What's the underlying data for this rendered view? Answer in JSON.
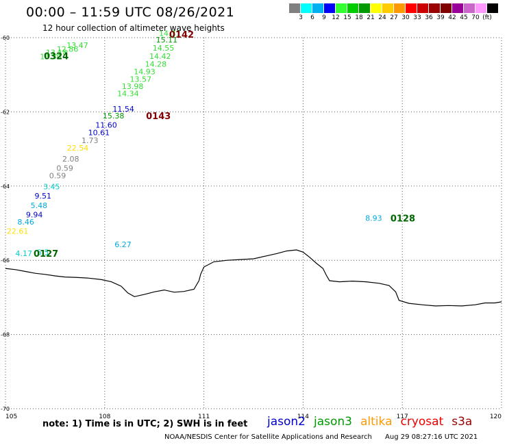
{
  "header": {
    "title": "00:00 – 11:59 UTC 08/26/2021",
    "subtitle": "12 hour collection of altimeter wave heights"
  },
  "colorbar": {
    "colors": [
      "#808080",
      "#00ffff",
      "#00b0f0",
      "#0000ff",
      "#33ff33",
      "#00cc00",
      "#009900",
      "#ffff00",
      "#ffcc00",
      "#ff9900",
      "#ff0000",
      "#cc0000",
      "#990000",
      "#800000",
      "#990099",
      "#cc66cc",
      "#ff99ff",
      "#000000"
    ],
    "labels": [
      "3",
      "6",
      "9",
      "12",
      "15",
      "18",
      "21",
      "24",
      "27",
      "30",
      "33",
      "36",
      "39",
      "42",
      "45",
      "70",
      "(ft)"
    ]
  },
  "map": {
    "x_ticks": [
      {
        "value": 105,
        "label": "105"
      },
      {
        "value": 108,
        "label": "108"
      },
      {
        "value": 111,
        "label": "111"
      },
      {
        "value": 114,
        "label": "114"
      },
      {
        "value": 117,
        "label": "117"
      },
      {
        "value": 120,
        "label": "120"
      }
    ],
    "y_ticks": [
      {
        "value": -60,
        "label": "-60"
      },
      {
        "value": -62,
        "label": "-62"
      },
      {
        "value": -64,
        "label": "-64"
      },
      {
        "value": -66,
        "label": "-66"
      },
      {
        "value": -68,
        "label": "-68"
      },
      {
        "value": -70,
        "label": "-70"
      }
    ],
    "x_range": [
      105,
      120
    ],
    "y_range": [
      -60,
      -70
    ],
    "coastline": [
      [
        105.0,
        -66.22
      ],
      [
        105.3,
        -66.25
      ],
      [
        105.6,
        -66.3
      ],
      [
        105.9,
        -66.35
      ],
      [
        106.2,
        -66.38
      ],
      [
        106.5,
        -66.42
      ],
      [
        106.8,
        -66.45
      ],
      [
        107.1,
        -66.46
      ],
      [
        107.5,
        -66.48
      ],
      [
        107.9,
        -66.52
      ],
      [
        108.2,
        -66.58
      ],
      [
        108.5,
        -66.7
      ],
      [
        108.7,
        -66.88
      ],
      [
        108.9,
        -66.98
      ],
      [
        109.2,
        -66.92
      ],
      [
        109.5,
        -66.85
      ],
      [
        109.8,
        -66.8
      ],
      [
        110.1,
        -66.86
      ],
      [
        110.4,
        -66.84
      ],
      [
        110.7,
        -66.78
      ],
      [
        110.85,
        -66.55
      ],
      [
        110.9,
        -66.38
      ],
      [
        111.0,
        -66.18
      ],
      [
        111.3,
        -66.04
      ],
      [
        111.7,
        -66.0
      ],
      [
        112.1,
        -65.98
      ],
      [
        112.5,
        -65.96
      ],
      [
        112.9,
        -65.88
      ],
      [
        113.2,
        -65.82
      ],
      [
        113.5,
        -65.75
      ],
      [
        113.8,
        -65.72
      ],
      [
        114.0,
        -65.78
      ],
      [
        114.2,
        -65.92
      ],
      [
        114.4,
        -66.08
      ],
      [
        114.6,
        -66.22
      ],
      [
        114.7,
        -66.4
      ],
      [
        114.8,
        -66.55
      ],
      [
        115.1,
        -66.58
      ],
      [
        115.5,
        -66.56
      ],
      [
        115.9,
        -66.58
      ],
      [
        116.3,
        -66.62
      ],
      [
        116.6,
        -66.68
      ],
      [
        116.8,
        -66.85
      ],
      [
        116.9,
        -67.08
      ],
      [
        117.2,
        -67.16
      ],
      [
        117.6,
        -67.2
      ],
      [
        118.0,
        -67.23
      ],
      [
        118.4,
        -67.22
      ],
      [
        118.8,
        -67.23
      ],
      [
        119.2,
        -67.2
      ],
      [
        119.5,
        -67.15
      ],
      [
        119.8,
        -67.15
      ],
      [
        120.0,
        -67.12
      ]
    ],
    "observations": [
      {
        "lon": 106.04,
        "lat": -60.58,
        "value": "13.30",
        "color": "#33dd33"
      },
      {
        "lon": 106.22,
        "lat": -60.47,
        "value": "13.18",
        "color": "#33dd33"
      },
      {
        "lon": 106.55,
        "lat": -60.38,
        "value": "12.86",
        "color": "#33dd33"
      },
      {
        "lon": 106.85,
        "lat": -60.28,
        "value": "13.47",
        "color": "#33dd33"
      },
      {
        "lon": 109.64,
        "lat": -59.95,
        "value": "14.31",
        "color": "#33dd33"
      },
      {
        "lon": 109.55,
        "lat": -60.13,
        "value": "15.11",
        "color": "#009900"
      },
      {
        "lon": 109.45,
        "lat": -60.35,
        "value": "14.55",
        "color": "#33dd33"
      },
      {
        "lon": 109.35,
        "lat": -60.57,
        "value": "14.42",
        "color": "#33dd33"
      },
      {
        "lon": 109.22,
        "lat": -60.78,
        "value": "14.28",
        "color": "#33dd33"
      },
      {
        "lon": 108.88,
        "lat": -60.99,
        "value": "14.93",
        "color": "#33dd33"
      },
      {
        "lon": 108.76,
        "lat": -61.19,
        "value": "13.57",
        "color": "#33dd33"
      },
      {
        "lon": 108.52,
        "lat": -61.38,
        "value": "13.98",
        "color": "#33dd33"
      },
      {
        "lon": 108.38,
        "lat": -61.58,
        "value": "14.34",
        "color": "#33dd33"
      },
      {
        "lon": 108.24,
        "lat": -61.99,
        "value": "11.54",
        "color": "#0000cc"
      },
      {
        "lon": 107.94,
        "lat": -62.18,
        "value": "15.38",
        "color": "#009900"
      },
      {
        "lon": 107.72,
        "lat": -62.43,
        "value": "11.60",
        "color": "#0000cc"
      },
      {
        "lon": 107.5,
        "lat": -62.63,
        "value": "10.61",
        "color": "#0000cc"
      },
      {
        "lon": 107.3,
        "lat": -62.84,
        "value": "1.73",
        "color": "#808080"
      },
      {
        "lon": 106.86,
        "lat": -63.04,
        "value": "22.54",
        "color": "#ffdd00"
      },
      {
        "lon": 106.72,
        "lat": -63.34,
        "value": "2.08",
        "color": "#808080"
      },
      {
        "lon": 106.54,
        "lat": -63.59,
        "value": "0.59",
        "color": "#808080"
      },
      {
        "lon": 106.32,
        "lat": -63.79,
        "value": "0.59",
        "color": "#808080"
      },
      {
        "lon": 106.14,
        "lat": -64.09,
        "value": "3.45",
        "color": "#00cccc"
      },
      {
        "lon": 105.88,
        "lat": -64.34,
        "value": "9.51",
        "color": "#0000cc"
      },
      {
        "lon": 105.76,
        "lat": -64.59,
        "value": "5.48",
        "color": "#00aadd"
      },
      {
        "lon": 105.62,
        "lat": -64.84,
        "value": "9.94",
        "color": "#0000cc"
      },
      {
        "lon": 105.36,
        "lat": -65.04,
        "value": "8.46",
        "color": "#00aadd"
      },
      {
        "lon": 105.04,
        "lat": -65.29,
        "value": "22.61",
        "color": "#ffdd00"
      },
      {
        "lon": 105.3,
        "lat": -65.89,
        "value": "4.17",
        "color": "#00cccc"
      },
      {
        "lon": 105.95,
        "lat": -65.86,
        "value": "5.5",
        "color": "#00cccc"
      },
      {
        "lon": 108.3,
        "lat": -65.65,
        "value": "6.27",
        "color": "#00aadd"
      },
      {
        "lon": 115.88,
        "lat": -64.94,
        "value": "8.93",
        "color": "#00aadd"
      }
    ],
    "times": [
      {
        "lon": 106.16,
        "lat": -60.58,
        "value": "0324",
        "color": "#006600"
      },
      {
        "lon": 109.95,
        "lat": -60.0,
        "value": "0142",
        "color": "#800000"
      },
      {
        "lon": 109.25,
        "lat": -62.2,
        "value": "0143",
        "color": "#800000"
      },
      {
        "lon": 105.85,
        "lat": -65.9,
        "value": "0127",
        "color": "#006600"
      },
      {
        "lon": 116.64,
        "lat": -64.95,
        "value": "0128",
        "color": "#006600"
      }
    ]
  },
  "note": "note: 1) Time is in UTC; 2) SWH is in feet",
  "legend": [
    {
      "label": "jason2",
      "color": "#0000cc"
    },
    {
      "label": "jason3",
      "color": "#009900"
    },
    {
      "label": "altika",
      "color": "#ff9900"
    },
    {
      "label": "cryosat",
      "color": "#ee0000"
    },
    {
      "label": "s3a",
      "color": "#990000"
    }
  ],
  "footer": {
    "credit": "NOAA/NESDIS Center for Satellite Applications and Research",
    "timestamp": "Aug 29 08:27:16 UTC 2021"
  }
}
